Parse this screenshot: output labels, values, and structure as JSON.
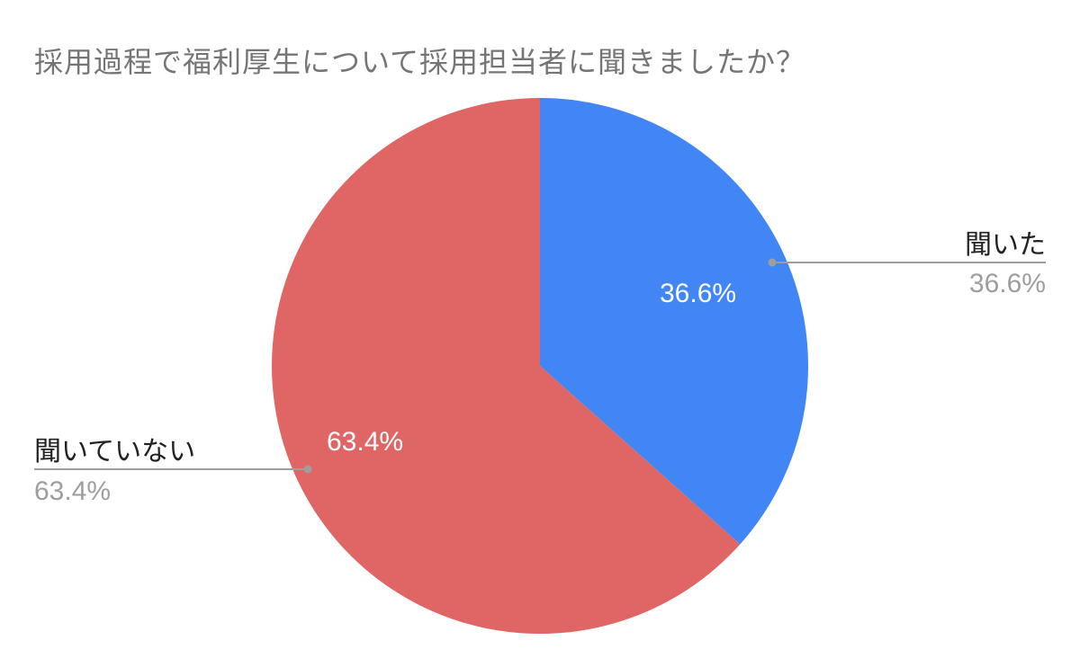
{
  "chart_data": {
    "type": "pie",
    "title": "採用過程で福利厚生について採用担当者に聞きましたか？",
    "categories": [
      "聞いた",
      "聞いていない"
    ],
    "values": [
      36.6,
      63.4
    ],
    "unit": "%",
    "colors": [
      "#4285f4",
      "#e06666"
    ],
    "slice_labels": [
      "36.6%",
      "63.4%"
    ],
    "legend_position": "leader-lines",
    "start_angle_deg": 0,
    "direction": "clockwise"
  },
  "labels": {
    "slice1": {
      "name": "聞いた",
      "value": "36.6%"
    },
    "slice2": {
      "name": "聞いていない",
      "value": "63.4%"
    }
  }
}
